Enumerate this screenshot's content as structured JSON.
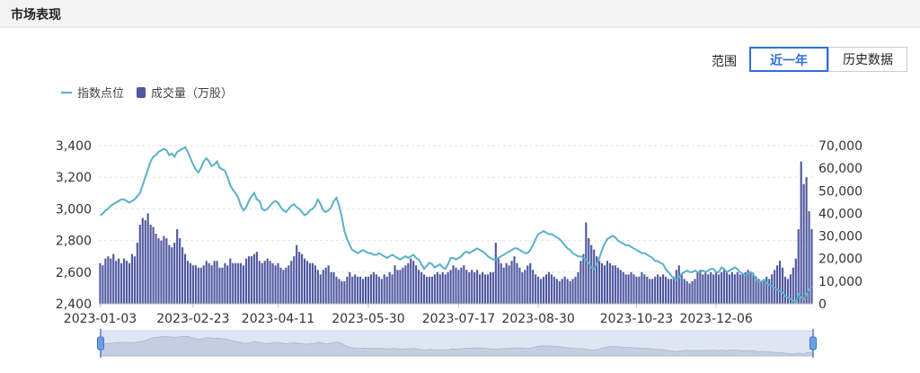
{
  "header": {
    "title": "市场表现"
  },
  "range_selector": {
    "label": "范围",
    "options": [
      "近一年",
      "历史数据"
    ],
    "selected": "近一年"
  },
  "legend": {
    "line": "指数点位",
    "bar": "成交量（万股）"
  },
  "colors": {
    "line": "#5ab1c7",
    "bar": "#4f58a0",
    "accent": "#2f6fd6"
  },
  "chart_data": {
    "type": "bar",
    "x_tick_labels": [
      "2023-01-03",
      "2023-02-23",
      "2023-04-11",
      "2023-05-30",
      "2023-07-17",
      "2023-08-30",
      "2023-10-23",
      "2023-12-06"
    ],
    "y_left": {
      "ticks": [
        "3,400",
        "3,200",
        "3,000",
        "2,800",
        "2,600",
        "2,400"
      ],
      "range": [
        2400,
        3400
      ]
    },
    "y_right": {
      "ticks": [
        "70,000",
        "60,000",
        "50,000",
        "40,000",
        "30,000",
        "20,000",
        "10,000",
        "0"
      ],
      "range": [
        0,
        70000
      ]
    },
    "grid": true,
    "legend_position": "top-left",
    "series": [
      {
        "name": "指数点位",
        "type": "line",
        "values": [
          2960,
          2970,
          2990,
          3000,
          3020,
          3030,
          3040,
          3050,
          3060,
          3060,
          3050,
          3040,
          3050,
          3060,
          3080,
          3100,
          3150,
          3200,
          3250,
          3300,
          3330,
          3340,
          3360,
          3370,
          3380,
          3370,
          3340,
          3350,
          3330,
          3360,
          3370,
          3380,
          3390,
          3360,
          3320,
          3280,
          3250,
          3230,
          3260,
          3300,
          3320,
          3300,
          3270,
          3280,
          3300,
          3260,
          3250,
          3240,
          3200,
          3150,
          3120,
          3100,
          3070,
          3020,
          2990,
          3010,
          3050,
          3080,
          3100,
          3060,
          3050,
          3000,
          2990,
          3000,
          3020,
          3040,
          3050,
          3040,
          3010,
          2990,
          2980,
          3000,
          3020,
          3030,
          3010,
          3000,
          2980,
          2960,
          2970,
          2990,
          3000,
          3020,
          3060,
          3030,
          2990,
          2980,
          2990,
          3010,
          3050,
          3070,
          3020,
          2950,
          2860,
          2810,
          2770,
          2740,
          2730,
          2720,
          2730,
          2740,
          2730,
          2720,
          2720,
          2710,
          2710,
          2720,
          2710,
          2700,
          2690,
          2700,
          2710,
          2700,
          2690,
          2680,
          2690,
          2700,
          2690,
          2700,
          2710,
          2690,
          2680,
          2650,
          2620,
          2640,
          2660,
          2650,
          2630,
          2640,
          2650,
          2630,
          2620,
          2650,
          2690,
          2690,
          2680,
          2690,
          2700,
          2720,
          2730,
          2720,
          2730,
          2740,
          2750,
          2740,
          2730,
          2720,
          2700,
          2690,
          2680,
          2680,
          2690,
          2700,
          2710,
          2720,
          2730,
          2740,
          2750,
          2750,
          2740,
          2730,
          2720,
          2720,
          2740,
          2770,
          2810,
          2840,
          2850,
          2860,
          2850,
          2840,
          2840,
          2830,
          2820,
          2810,
          2790,
          2770,
          2750,
          2740,
          2720,
          2710,
          2700,
          2700,
          2690,
          2680,
          2660,
          2630,
          2620,
          2650,
          2690,
          2740,
          2780,
          2810,
          2820,
          2830,
          2820,
          2800,
          2790,
          2780,
          2770,
          2770,
          2760,
          2750,
          2740,
          2730,
          2720,
          2720,
          2710,
          2700,
          2690,
          2670,
          2670,
          2660,
          2650,
          2620,
          2600,
          2580,
          2560,
          2550,
          2570,
          2590,
          2600,
          2610,
          2600,
          2600,
          2610,
          2600,
          2600,
          2610,
          2600,
          2610,
          2620,
          2620,
          2600,
          2600,
          2630,
          2620,
          2600,
          2610,
          2620,
          2630,
          2620,
          2600,
          2590,
          2580,
          2590,
          2600,
          2590,
          2550,
          2540,
          2540,
          2550,
          2530,
          2520,
          2510,
          2500,
          2490,
          2480,
          2470,
          2450,
          2440,
          2430,
          2420,
          2410,
          2460,
          2440,
          2430,
          2460,
          2490,
          2510
        ]
      },
      {
        "name": "成交量（万股）",
        "type": "bar",
        "values": [
          18000,
          17000,
          20000,
          21000,
          20000,
          22000,
          19000,
          20000,
          18000,
          20000,
          19000,
          18000,
          22000,
          21000,
          27000,
          35000,
          38000,
          37000,
          40000,
          35000,
          34000,
          31000,
          29000,
          28000,
          30000,
          29000,
          26000,
          25000,
          27000,
          33000,
          29000,
          25000,
          22000,
          19000,
          18000,
          17000,
          17000,
          16000,
          16000,
          17000,
          19000,
          18000,
          17000,
          19000,
          19000,
          16000,
          16000,
          18000,
          17000,
          20000,
          18000,
          18000,
          18000,
          18000,
          17000,
          20000,
          21000,
          21000,
          22000,
          23000,
          19000,
          18000,
          19000,
          20000,
          19000,
          18000,
          17000,
          18000,
          16000,
          15000,
          16000,
          17000,
          19000,
          21000,
          26000,
          23000,
          22000,
          20000,
          19000,
          18000,
          18000,
          17000,
          15000,
          13000,
          15000,
          16000,
          17000,
          14000,
          14000,
          12000,
          11000,
          10000,
          10000,
          12000,
          14000,
          12000,
          13000,
          12000,
          12000,
          11000,
          12000,
          12000,
          13000,
          14000,
          13000,
          12000,
          11000,
          13000,
          12000,
          14000,
          13000,
          17000,
          15000,
          15000,
          16000,
          17000,
          18000,
          20000,
          19000,
          17000,
          15000,
          14000,
          13000,
          12000,
          12000,
          12000,
          13000,
          14000,
          13000,
          14000,
          13000,
          14000,
          15000,
          17000,
          16000,
          15000,
          16000,
          17000,
          15000,
          14000,
          15000,
          14000,
          15000,
          13000,
          14000,
          13000,
          13000,
          14000,
          14000,
          27000,
          20000,
          18000,
          16000,
          18000,
          17000,
          19000,
          21000,
          18000,
          16000,
          14000,
          15000,
          17000,
          18000,
          15000,
          13000,
          12000,
          11000,
          12000,
          13000,
          14000,
          13000,
          12000,
          11000,
          10000,
          11000,
          12000,
          11000,
          10000,
          11000,
          12000,
          14000,
          19000,
          22000,
          36000,
          29000,
          26000,
          24000,
          21000,
          19000,
          18000,
          17000,
          19000,
          18000,
          17000,
          17000,
          16000,
          15000,
          14000,
          13000,
          13000,
          14000,
          13000,
          12000,
          12000,
          14000,
          13000,
          12000,
          11000,
          11000,
          12000,
          13000,
          12000,
          13000,
          12000,
          11000,
          11000,
          12000,
          15000,
          17000,
          13000,
          11000,
          10000,
          9000,
          10000,
          11000,
          14000,
          15000,
          13000,
          14000,
          13000,
          14000,
          13000,
          14000,
          13000,
          14000,
          15000,
          14000,
          13000,
          14000,
          13000,
          14000,
          13000,
          13000,
          14000,
          15000,
          14000,
          13000,
          12000,
          11000,
          10000,
          11000,
          12000,
          11000,
          13000,
          15000,
          17000,
          19000,
          16000,
          12000,
          11000,
          13000,
          16000,
          20000,
          33000,
          63000,
          53000,
          56000,
          41000,
          33000
        ]
      }
    ]
  }
}
